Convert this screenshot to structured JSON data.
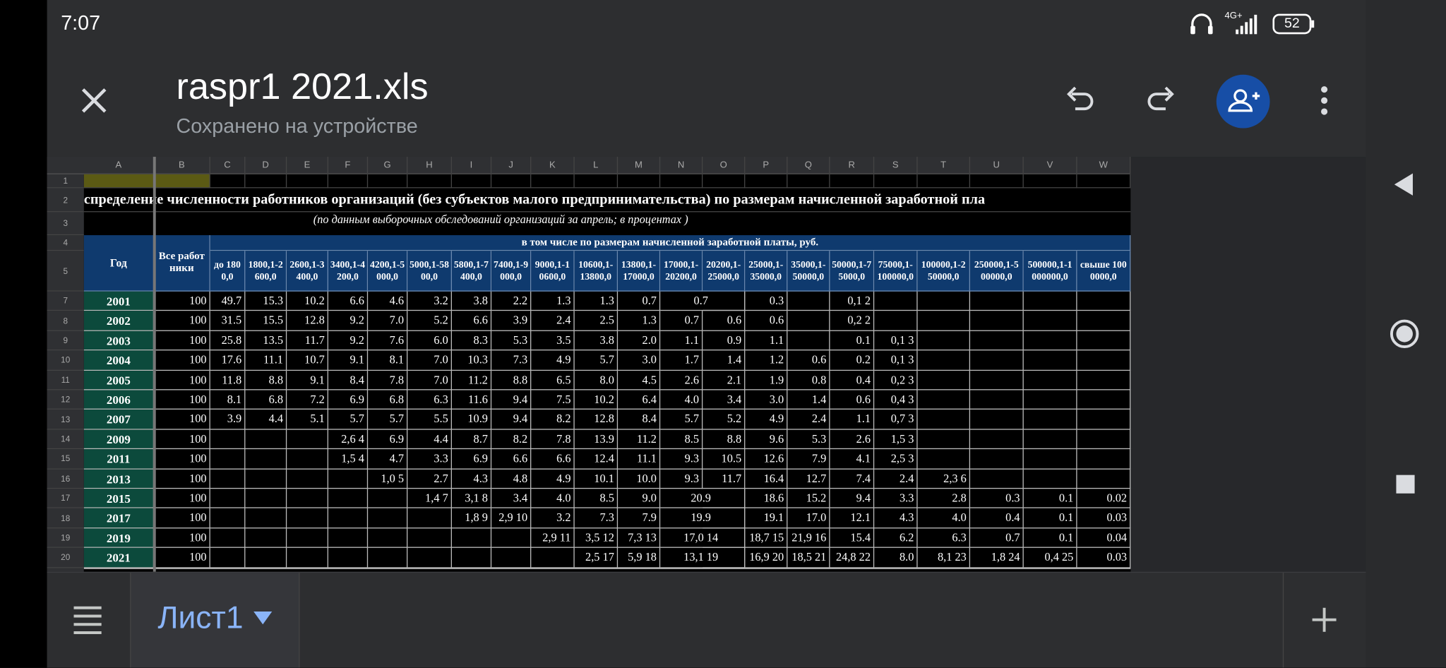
{
  "status_bar": {
    "time": "7:07",
    "network": "4G+",
    "battery": "52"
  },
  "header": {
    "title": "raspr1 2021.xls",
    "subtitle": "Сохранено на устройстве"
  },
  "sheet": {
    "column_letters": [
      "A",
      "B",
      "C",
      "D",
      "E",
      "F",
      "G",
      "H",
      "I",
      "J",
      "K",
      "L",
      "M",
      "N",
      "O",
      "P",
      "Q",
      "R",
      "S",
      "T",
      "U",
      "V",
      "W"
    ],
    "row_numbers": [
      1,
      2,
      3,
      4,
      5,
      7,
      8,
      9,
      10,
      11,
      12,
      13,
      14,
      15,
      16,
      17,
      18,
      19,
      20
    ],
    "title": "спределение численности работников организаций (без субъектов малого предпринимательства) по размерам начисленной заработной пла",
    "subtitle": "(по данным  выборочных обследований организаций за апрель; в процентах )",
    "group_header": "в том числе по размерам начисленной заработной платы, руб.",
    "header_year": "Год",
    "header_total": "Все работники",
    "band_headers": [
      "до 1800,0",
      "1800,1-2600,0",
      "2600,1-3400,0",
      "3400,1-4200,0",
      "4200,1-5000,0",
      "5000,1-5800,0",
      "5800,1-7400,0",
      "7400,1-9000,0",
      "9000,1-10600,0",
      "10600,1-13800,0",
      "13800,1-17000,0",
      "17000,1-20200,0",
      "20200,1-25000,0",
      "25000,1-35000,0",
      "35000,1-50000,0",
      "50000,1-75000,0",
      "75000,1-100000,0",
      "100000,1-250000,0",
      "250000,1-500000,0",
      "500000,1-1000000,0",
      "свыше 1000000,0"
    ],
    "rows": [
      {
        "year": "2001",
        "values": [
          "100",
          "49.7",
          "15.3",
          "10.2",
          "6.6",
          "4.6",
          "3.2",
          "3.8",
          "2.2",
          "1.3",
          "1.3",
          "0.7",
          "0.7",
          null,
          "0.3",
          null,
          "0,1 2",
          null,
          null,
          null,
          null,
          null
        ]
      },
      {
        "year": "2002",
        "values": [
          "100",
          "31.5",
          "15.5",
          "12.8",
          "9.2",
          "7.0",
          "5.2",
          "6.6",
          "3.9",
          "2.4",
          "2.5",
          "1.3",
          "0.7",
          "0.6",
          "0.6",
          null,
          "0,2 2",
          null,
          null,
          null,
          null,
          null
        ]
      },
      {
        "year": "2003",
        "values": [
          "100",
          "25.8",
          "13.5",
          "11.7",
          "9.2",
          "7.6",
          "6.0",
          "8.3",
          "5.3",
          "3.5",
          "3.8",
          "2.0",
          "1.1",
          "0.9",
          "1.1",
          null,
          "0.1",
          "0,1 3",
          null,
          null,
          null,
          null
        ]
      },
      {
        "year": "2004",
        "values": [
          "100",
          "17.6",
          "11.1",
          "10.7",
          "9.1",
          "8.1",
          "7.0",
          "10.3",
          "7.3",
          "4.9",
          "5.7",
          "3.0",
          "1.7",
          "1.4",
          "1.2",
          "0.6",
          "0.2",
          "0,1 3",
          null,
          null,
          null,
          null
        ]
      },
      {
        "year": "2005",
        "values": [
          "100",
          "11.8",
          "8.8",
          "9.1",
          "8.4",
          "7.8",
          "7.0",
          "11.2",
          "8.8",
          "6.5",
          "8.0",
          "4.5",
          "2.6",
          "2.1",
          "1.9",
          "0.8",
          "0.4",
          "0,2 3",
          null,
          null,
          null,
          null
        ]
      },
      {
        "year": "2006",
        "values": [
          "100",
          "8.1",
          "6.8",
          "7.2",
          "6.9",
          "6.8",
          "6.3",
          "11.6",
          "9.4",
          "7.5",
          "10.2",
          "6.4",
          "4.0",
          "3.4",
          "3.0",
          "1.4",
          "0.6",
          "0,4 3",
          null,
          null,
          null,
          null
        ]
      },
      {
        "year": "2007",
        "values": [
          "100",
          "3.9",
          "4.4",
          "5.1",
          "5.7",
          "5.7",
          "5.5",
          "10.9",
          "9.4",
          "8.2",
          "12.8",
          "8.4",
          "5.7",
          "5.2",
          "4.9",
          "2.4",
          "1.1",
          "0,7 3",
          null,
          null,
          null,
          null
        ]
      },
      {
        "year": "2009",
        "values": [
          "100",
          null,
          null,
          null,
          "2,6 4",
          "6.9",
          "4.4",
          "8.7",
          "8.2",
          "7.8",
          "13.9",
          "11.2",
          "8.5",
          "8.8",
          "9.6",
          "5.3",
          "2.6",
          "1,5 3",
          null,
          null,
          null,
          null
        ]
      },
      {
        "year": "2011",
        "values": [
          "100",
          null,
          null,
          null,
          "1,5 4",
          "4.7",
          "3.3",
          "6.9",
          "6.6",
          "6.6",
          "12.4",
          "11.1",
          "9.3",
          "10.5",
          "12.6",
          "7.9",
          "4.1",
          "2,5 3",
          null,
          null,
          null,
          null
        ]
      },
      {
        "year": "2013",
        "values": [
          "100",
          null,
          null,
          null,
          null,
          "1,0 5",
          "2.7",
          "4.3",
          "4.8",
          "4.9",
          "10.1",
          "10.0",
          "9.3",
          "11.7",
          "16.4",
          "12.7",
          "7.4",
          "2.4",
          "2,3 6",
          null,
          null,
          null
        ]
      },
      {
        "year": "2015",
        "values": [
          "100",
          null,
          null,
          null,
          null,
          null,
          "1,4 7",
          "3,1 8",
          "3.4",
          "4.0",
          "8.5",
          "9.0",
          "20.9",
          null,
          "18.6",
          "15.2",
          "9.4",
          "3.3",
          "2.8",
          "0.3",
          "0.1",
          "0.02"
        ]
      },
      {
        "year": "2017",
        "values": [
          "100",
          null,
          null,
          null,
          null,
          null,
          null,
          "1,8 9",
          "2,9 10",
          "3.2",
          "7.3",
          "7.9",
          "19.9",
          null,
          "19.1",
          "17.0",
          "12.1",
          "4.3",
          "4.0",
          "0.4",
          "0.1",
          "0.03"
        ]
      },
      {
        "year": "2019",
        "values": [
          "100",
          null,
          null,
          null,
          null,
          null,
          null,
          null,
          null,
          "2,9 11",
          "3,5 12",
          "7,3 13",
          "17,0 14",
          null,
          "18,7 15",
          "21,9 16",
          "15.4",
          "6.2",
          "6.3",
          "0.7",
          "0.1",
          "0.04"
        ]
      },
      {
        "year": "2021",
        "values": [
          "100",
          null,
          null,
          null,
          null,
          null,
          null,
          null,
          null,
          null,
          "2,5 17",
          "5,9 18",
          "13,1 19",
          null,
          "16,9 20",
          "18,5 21",
          "24,8 22",
          "8.0",
          "8,1 23",
          "1,8 24",
          "0,4 25",
          "0.03"
        ]
      }
    ]
  },
  "tab": {
    "name": "Лист1"
  }
}
